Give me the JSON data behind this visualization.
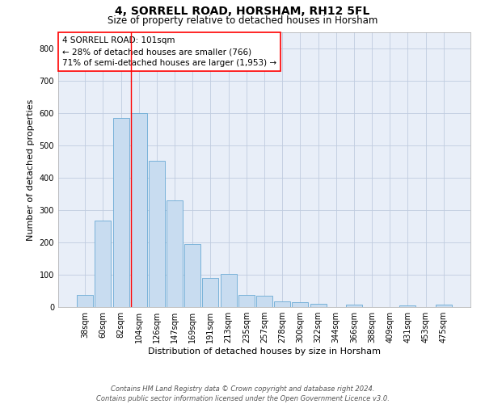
{
  "title1": "4, SORRELL ROAD, HORSHAM, RH12 5FL",
  "title2": "Size of property relative to detached houses in Horsham",
  "xlabel": "Distribution of detached houses by size in Horsham",
  "ylabel": "Number of detached properties",
  "categories": [
    "38sqm",
    "60sqm",
    "82sqm",
    "104sqm",
    "126sqm",
    "147sqm",
    "169sqm",
    "191sqm",
    "213sqm",
    "235sqm",
    "257sqm",
    "278sqm",
    "300sqm",
    "322sqm",
    "344sqm",
    "366sqm",
    "388sqm",
    "409sqm",
    "431sqm",
    "453sqm",
    "475sqm"
  ],
  "values": [
    38,
    267,
    585,
    601,
    453,
    330,
    196,
    90,
    102,
    38,
    35,
    18,
    14,
    10,
    0,
    8,
    0,
    0,
    6,
    0,
    7
  ],
  "bar_color": "#c8dcf0",
  "bar_edge_color": "#6aaad4",
  "annotation_text_line1": "4 SORRELL ROAD: 101sqm",
  "annotation_text_line2": "← 28% of detached houses are smaller (766)",
  "annotation_text_line3": "71% of semi-detached houses are larger (1,953) →",
  "annotation_box_color": "white",
  "annotation_box_edge_color": "red",
  "vline_color": "red",
  "grid_color": "#c0cce0",
  "background_color": "#e8eef8",
  "ylim": [
    0,
    850
  ],
  "yticks": [
    0,
    100,
    200,
    300,
    400,
    500,
    600,
    700,
    800
  ],
  "footer_line1": "Contains HM Land Registry data © Crown copyright and database right 2024.",
  "footer_line2": "Contains public sector information licensed under the Open Government Licence v3.0.",
  "title1_fontsize": 10,
  "title2_fontsize": 8.5,
  "xlabel_fontsize": 8,
  "ylabel_fontsize": 8,
  "tick_fontsize": 7,
  "footer_fontsize": 6,
  "annotation_fontsize": 7.5
}
